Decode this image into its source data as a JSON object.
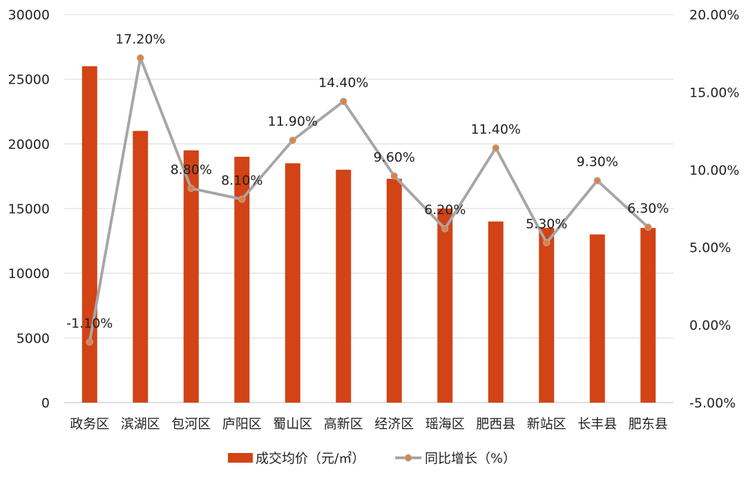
{
  "chart_data": {
    "type": "bar",
    "categories": [
      "政务区",
      "滨湖区",
      "包河区",
      "庐阳区",
      "蜀山区",
      "高新区",
      "经济区",
      "瑶海区",
      "肥西县",
      "新站区",
      "长丰县",
      "肥东县"
    ],
    "series": [
      {
        "name": "成交均价（元/㎡）",
        "type": "bar",
        "axis": "left",
        "color": "#d24315",
        "values": [
          26000,
          21000,
          19500,
          19000,
          18500,
          18000,
          17300,
          15000,
          14000,
          13500,
          13000,
          13500
        ]
      },
      {
        "name": "同比增长（%）",
        "type": "line",
        "axis": "right",
        "color": "#a6a6a6",
        "marker_color": "#ed7d31",
        "values": [
          -1.1,
          17.2,
          8.8,
          8.1,
          11.9,
          14.4,
          9.6,
          6.2,
          11.4,
          5.3,
          9.3,
          6.3
        ],
        "labels": [
          "-1.10%",
          "17.20%",
          "8.80%",
          "8.10%",
          "11.90%",
          "14.40%",
          "9.60%",
          "6.20%",
          "11.40%",
          "5.30%",
          "9.30%",
          "6.30%"
        ]
      }
    ],
    "y_left": {
      "range": [
        0,
        30000
      ],
      "ticks": [
        0,
        5000,
        10000,
        15000,
        20000,
        25000,
        30000
      ],
      "tick_labels": [
        "0",
        "5000",
        "10000",
        "15000",
        "20000",
        "25000",
        "30000"
      ]
    },
    "y_right": {
      "range": [
        -5,
        20
      ],
      "ticks": [
        -5,
        0,
        5,
        10,
        15,
        20
      ],
      "tick_labels": [
        "-5.00%",
        "0.00%",
        "5.00%",
        "10.00%",
        "15.00%",
        "20.00%"
      ]
    },
    "grid": true,
    "legend_position": "bottom",
    "legend": [
      "成交均价（元/㎡）",
      "同比增长（%）"
    ]
  }
}
